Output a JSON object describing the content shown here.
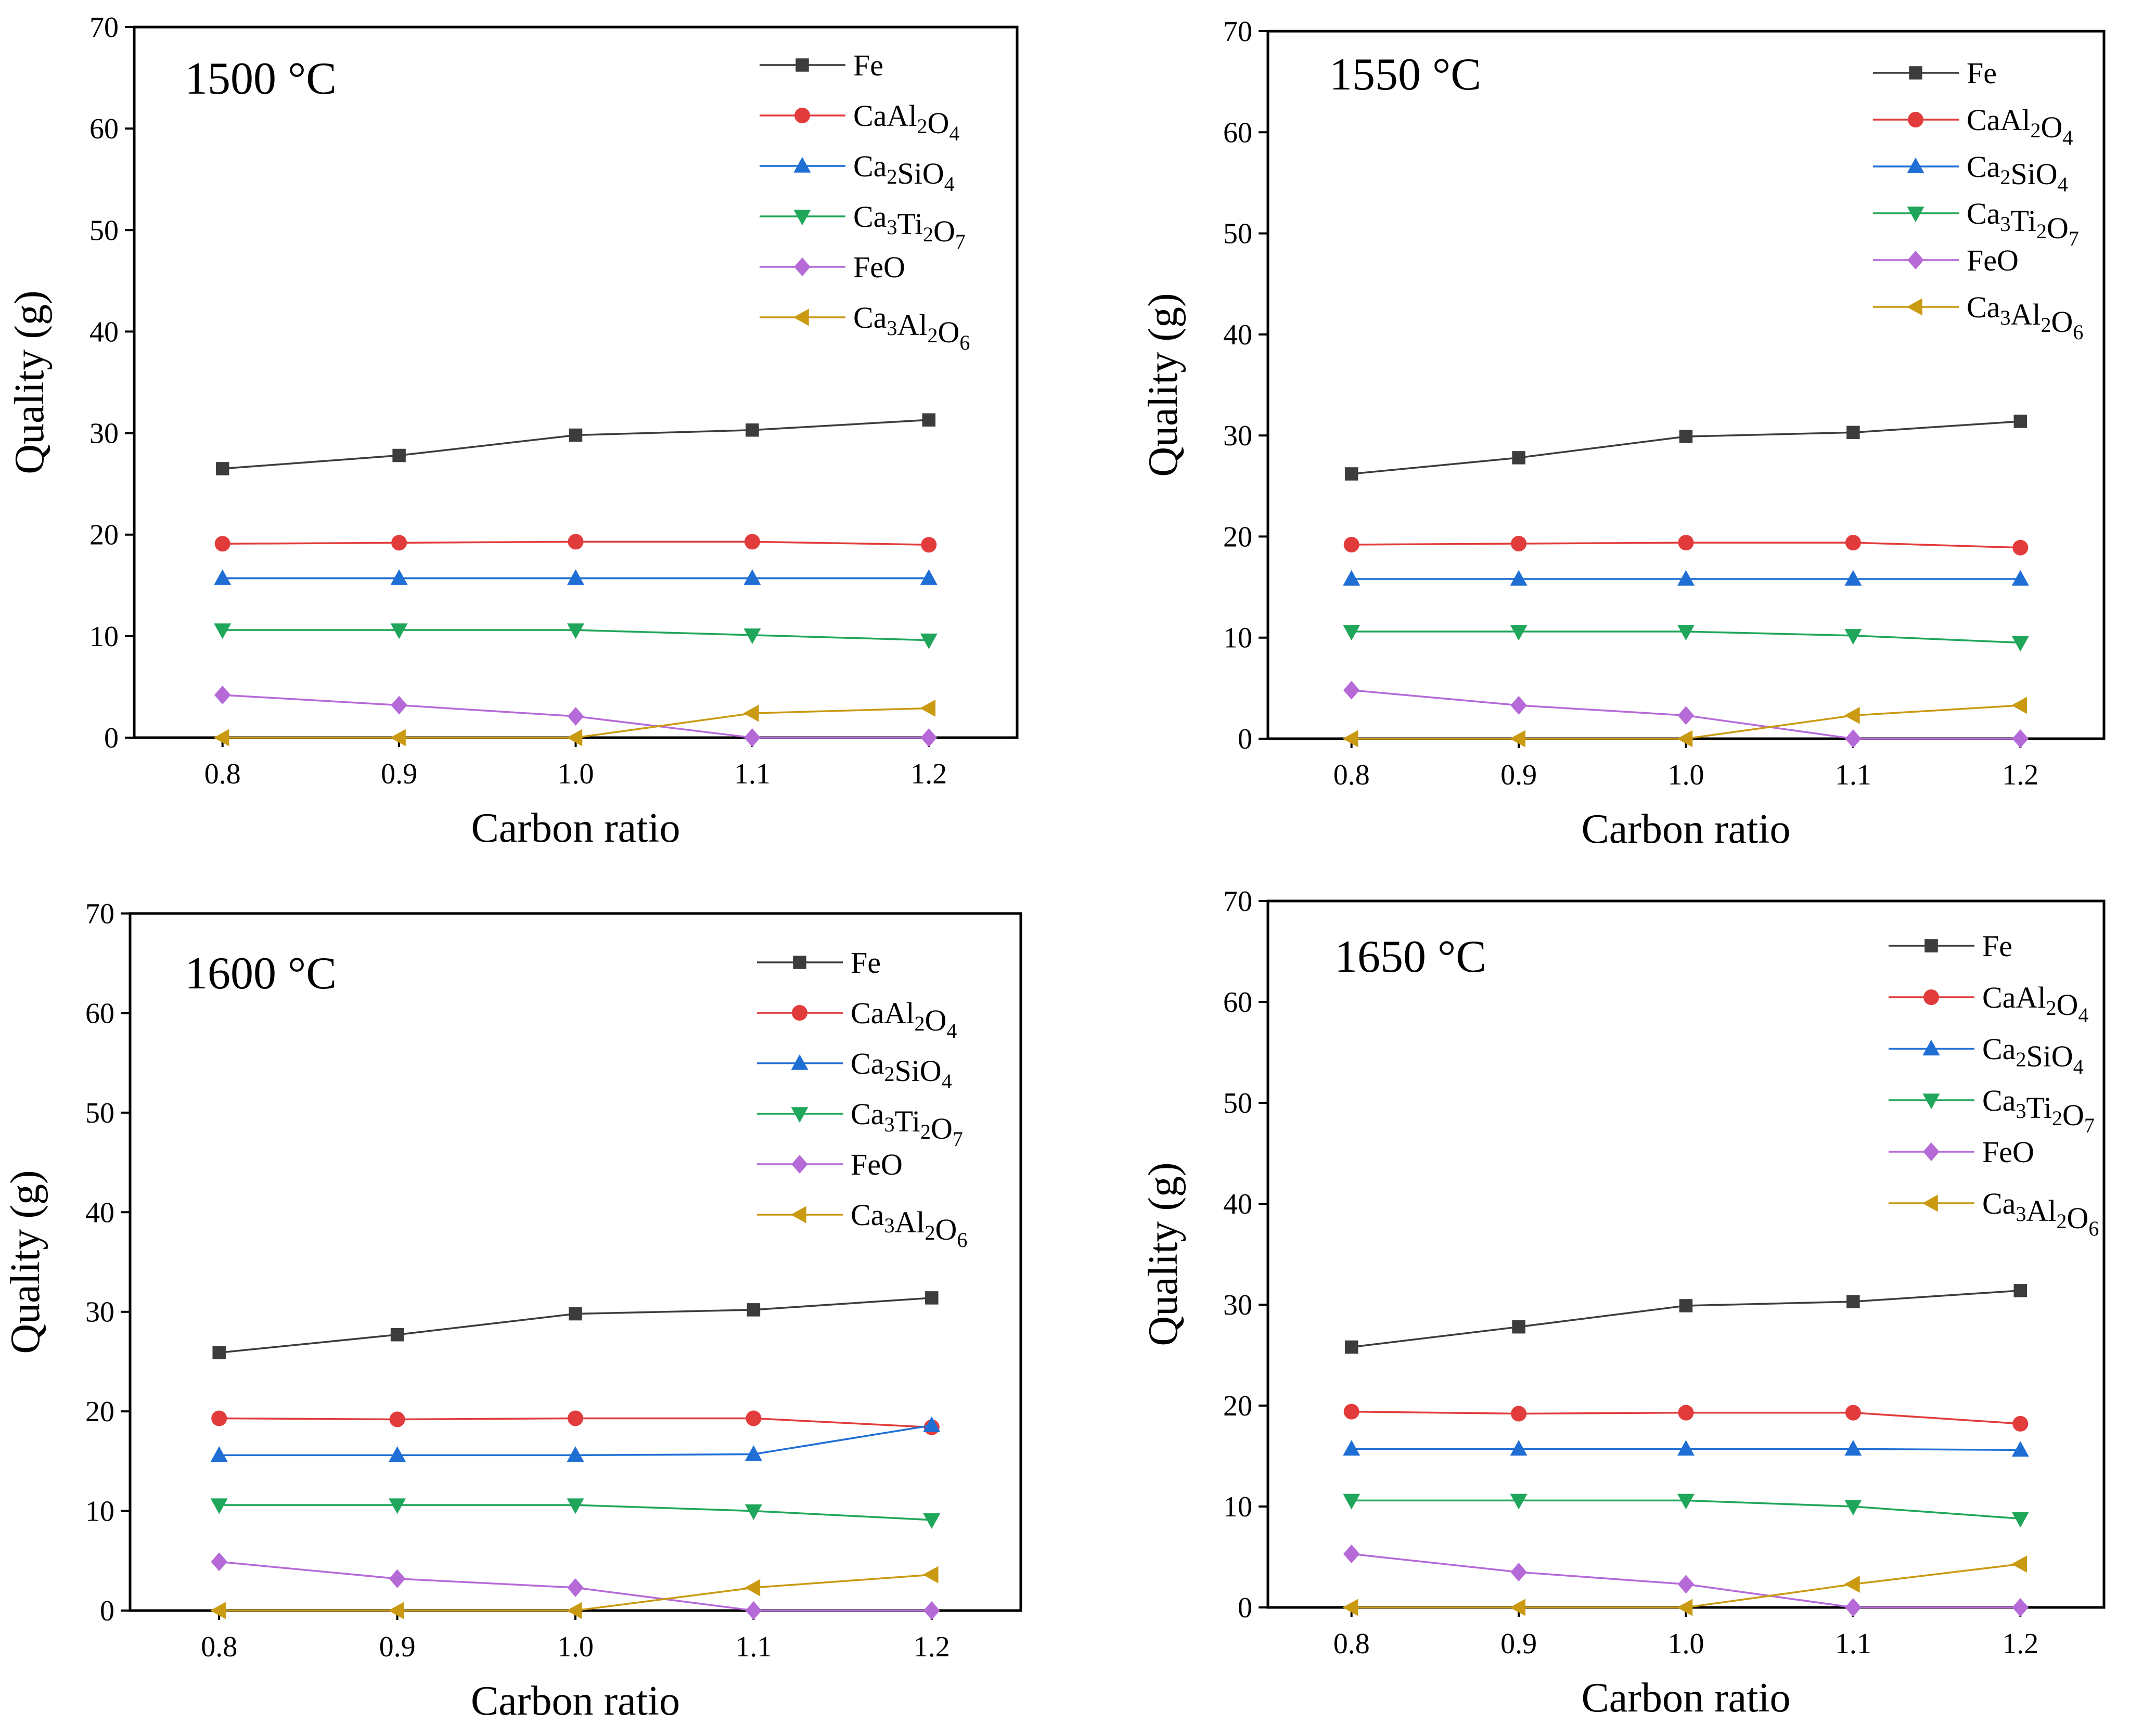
{
  "chart_data": [
    {
      "type": "line",
      "title": "1500 °C",
      "xlabel": "Carbon ratio",
      "ylabel": "Quality (g)",
      "x": [
        0.8,
        0.9,
        1.0,
        1.1,
        1.2
      ],
      "x_tick_labels": [
        "0.8",
        "0.9",
        "1.0",
        "1.1",
        "1.2"
      ],
      "y_tick_labels": [
        "0",
        "10",
        "20",
        "30",
        "40",
        "50",
        "60",
        "70"
      ],
      "ylim": [
        0,
        70
      ],
      "legend_position": "top-right",
      "series": [
        {
          "name": "Fe",
          "values": [
            26.5,
            27.8,
            29.8,
            30.3,
            31.3
          ]
        },
        {
          "name": "CaAl2O4",
          "values": [
            19.1,
            19.2,
            19.3,
            19.3,
            19.0
          ]
        },
        {
          "name": "Ca2SiO4",
          "values": [
            15.7,
            15.7,
            15.7,
            15.7,
            15.7
          ]
        },
        {
          "name": "Ca3Ti2O7",
          "values": [
            10.6,
            10.6,
            10.6,
            10.1,
            9.6
          ]
        },
        {
          "name": "FeO",
          "values": [
            4.2,
            3.2,
            2.1,
            0.0,
            0.0
          ]
        },
        {
          "name": "Ca3Al2O6",
          "values": [
            0.0,
            0.0,
            0.0,
            2.4,
            2.9
          ]
        }
      ]
    },
    {
      "type": "line",
      "title": "1550 °C",
      "xlabel": "Carbon ratio",
      "ylabel": "Quality (g)",
      "x": [
        0.8,
        0.9,
        1.0,
        1.1,
        1.2
      ],
      "x_tick_labels": [
        "0.8",
        "0.9",
        "1.0",
        "1.1",
        "1.2"
      ],
      "y_tick_labels": [
        "0",
        "10",
        "20",
        "30",
        "40",
        "50",
        "60",
        "70"
      ],
      "ylim": [
        0,
        70
      ],
      "legend_position": "top-right",
      "series": [
        {
          "name": "Fe",
          "values": [
            26.2,
            27.8,
            29.9,
            30.3,
            31.4
          ]
        },
        {
          "name": "CaAl2O4",
          "values": [
            19.2,
            19.3,
            19.4,
            19.4,
            18.9
          ]
        },
        {
          "name": "Ca2SiO4",
          "values": [
            15.8,
            15.8,
            15.8,
            15.8,
            15.8
          ]
        },
        {
          "name": "Ca3Ti2O7",
          "values": [
            10.6,
            10.6,
            10.6,
            10.2,
            9.5
          ]
        },
        {
          "name": "FeO",
          "values": [
            4.8,
            3.3,
            2.3,
            0.0,
            0.0
          ]
        },
        {
          "name": "Ca3Al2O6",
          "values": [
            0.0,
            0.0,
            0.0,
            2.3,
            3.3
          ]
        }
      ]
    },
    {
      "type": "line",
      "title": "1600 °C",
      "xlabel": "Carbon ratio",
      "ylabel": "Quality (g)",
      "x": [
        0.8,
        0.9,
        1.0,
        1.1,
        1.2
      ],
      "x_tick_labels": [
        "0.8",
        "0.9",
        "1.0",
        "1.1",
        "1.2"
      ],
      "y_tick_labels": [
        "0",
        "10",
        "20",
        "30",
        "40",
        "50",
        "60",
        "70"
      ],
      "ylim": [
        0,
        70
      ],
      "legend_position": "top-right",
      "series": [
        {
          "name": "Fe",
          "values": [
            25.9,
            27.7,
            29.8,
            30.2,
            31.4
          ]
        },
        {
          "name": "CaAl2O4",
          "values": [
            19.3,
            19.2,
            19.3,
            19.3,
            18.4
          ]
        },
        {
          "name": "Ca2SiO4",
          "values": [
            15.6,
            15.6,
            15.6,
            15.7,
            18.6
          ]
        },
        {
          "name": "Ca3Ti2O7",
          "values": [
            10.6,
            10.6,
            10.6,
            10.0,
            9.1
          ]
        },
        {
          "name": "FeO",
          "values": [
            4.9,
            3.2,
            2.3,
            0.0,
            0.0
          ]
        },
        {
          "name": "Ca3Al2O6",
          "values": [
            0.0,
            0.0,
            0.0,
            2.3,
            3.6
          ]
        }
      ]
    },
    {
      "type": "line",
      "title": "1650 °C",
      "xlabel": "Carbon ratio",
      "ylabel": "Quality (g)",
      "x": [
        0.8,
        0.9,
        1.0,
        1.1,
        1.2
      ],
      "x_tick_labels": [
        "0.8",
        "0.9",
        "1.0",
        "1.1",
        "1.2"
      ],
      "y_tick_labels": [
        "0",
        "10",
        "20",
        "30",
        "40",
        "50",
        "60",
        "70"
      ],
      "ylim": [
        0,
        70
      ],
      "legend_position": "top-right",
      "series": [
        {
          "name": "Fe",
          "values": [
            25.8,
            27.8,
            29.9,
            30.3,
            31.4
          ]
        },
        {
          "name": "CaAl2O4",
          "values": [
            19.4,
            19.2,
            19.3,
            19.3,
            18.2
          ]
        },
        {
          "name": "Ca2SiO4",
          "values": [
            15.7,
            15.7,
            15.7,
            15.7,
            15.6
          ]
        },
        {
          "name": "Ca3Ti2O7",
          "values": [
            10.6,
            10.6,
            10.6,
            10.0,
            8.8
          ]
        },
        {
          "name": "FeO",
          "values": [
            5.3,
            3.5,
            2.3,
            0.0,
            0.0
          ]
        },
        {
          "name": "Ca3Al2O6",
          "values": [
            0.0,
            0.0,
            0.0,
            2.3,
            4.3
          ]
        }
      ]
    }
  ],
  "series_styles": [
    {
      "name": "Fe",
      "color": "#3c3c3c",
      "marker": "square"
    },
    {
      "name": "CaAl2O4",
      "color": "#e23b3b",
      "marker": "circle"
    },
    {
      "name": "Ca2SiO4",
      "color": "#1f6ed4",
      "marker": "triangle-up"
    },
    {
      "name": "Ca3Ti2O7",
      "color": "#1fa65a",
      "marker": "triangle-down"
    },
    {
      "name": "FeO",
      "color": "#b66ad8",
      "marker": "diamond"
    },
    {
      "name": "Ca3Al2O6",
      "color": "#c99a12",
      "marker": "triangle-left"
    }
  ]
}
